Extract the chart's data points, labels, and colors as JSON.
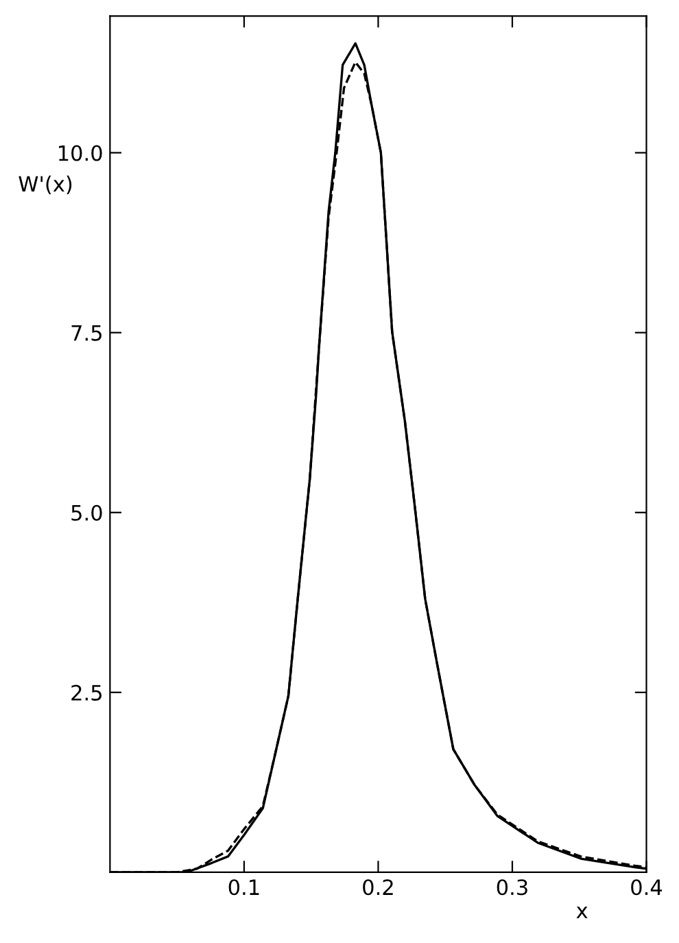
{
  "chart_data": {
    "type": "line",
    "xlabel": "x",
    "ylabel": "W'(x)",
    "xlim": [
      0,
      0.4
    ],
    "ylim": [
      0,
      11.9
    ],
    "xticks": [
      0.1,
      0.2,
      0.3,
      0.4
    ],
    "yticks": [
      2.5,
      {
        "value": 5,
        "label": "5.0"
      },
      7.5,
      {
        "value": 10,
        "label": "10.0"
      }
    ],
    "grid": false,
    "legend": false,
    "marker": "none",
    "series": [
      {
        "color": "#000000",
        "line_style": "solid",
        "x": [
          0,
          0.05,
          0.057,
          0.076,
          0.088,
          0.1,
          0.114,
          0.123,
          0.133,
          0.14,
          0.145,
          0.149,
          0.1535,
          0.156,
          0.163,
          0.168,
          0.1735,
          0.183,
          0.1896,
          0.195,
          0.202,
          0.2104,
          0.2199,
          0.2275,
          0.235,
          0.2436,
          0.256,
          0.272,
          0.289,
          0.319,
          0.351,
          0.3915,
          0.4
        ],
        "values": [
          0,
          0,
          0,
          0.13,
          0.22,
          0.52,
          0.89,
          1.63,
          2.45,
          3.8,
          4.73,
          5.47,
          6.59,
          7.33,
          9.18,
          10.0,
          11.22,
          11.52,
          11.22,
          10.67,
          10.0,
          7.51,
          6.27,
          5.05,
          3.8,
          2.93,
          1.71,
          1.21,
          0.78,
          0.41,
          0.19,
          0.07,
          0.05
        ]
      },
      {
        "color": "#000000",
        "line_style": "dashed",
        "x": [
          0,
          0.05,
          0.065,
          0.076,
          0.088,
          0.1,
          0.114,
          0.123,
          0.133,
          0.14,
          0.149,
          0.156,
          0.163,
          0.169,
          0.1745,
          0.183,
          0.1896,
          0.195,
          0.202,
          0.2104,
          0.2199,
          0.2275,
          0.235,
          0.2436,
          0.256,
          0.272,
          0.289,
          0.319,
          0.351,
          0.3915,
          0.4
        ],
        "values": [
          0,
          0,
          0.05,
          0.18,
          0.3,
          0.6,
          0.92,
          1.63,
          2.45,
          3.8,
          5.47,
          7.33,
          9.1,
          10.0,
          10.9,
          11.26,
          11.1,
          10.67,
          10.0,
          7.51,
          6.27,
          5.05,
          3.8,
          2.93,
          1.71,
          1.21,
          0.8,
          0.43,
          0.22,
          0.09,
          0.07
        ]
      }
    ]
  }
}
